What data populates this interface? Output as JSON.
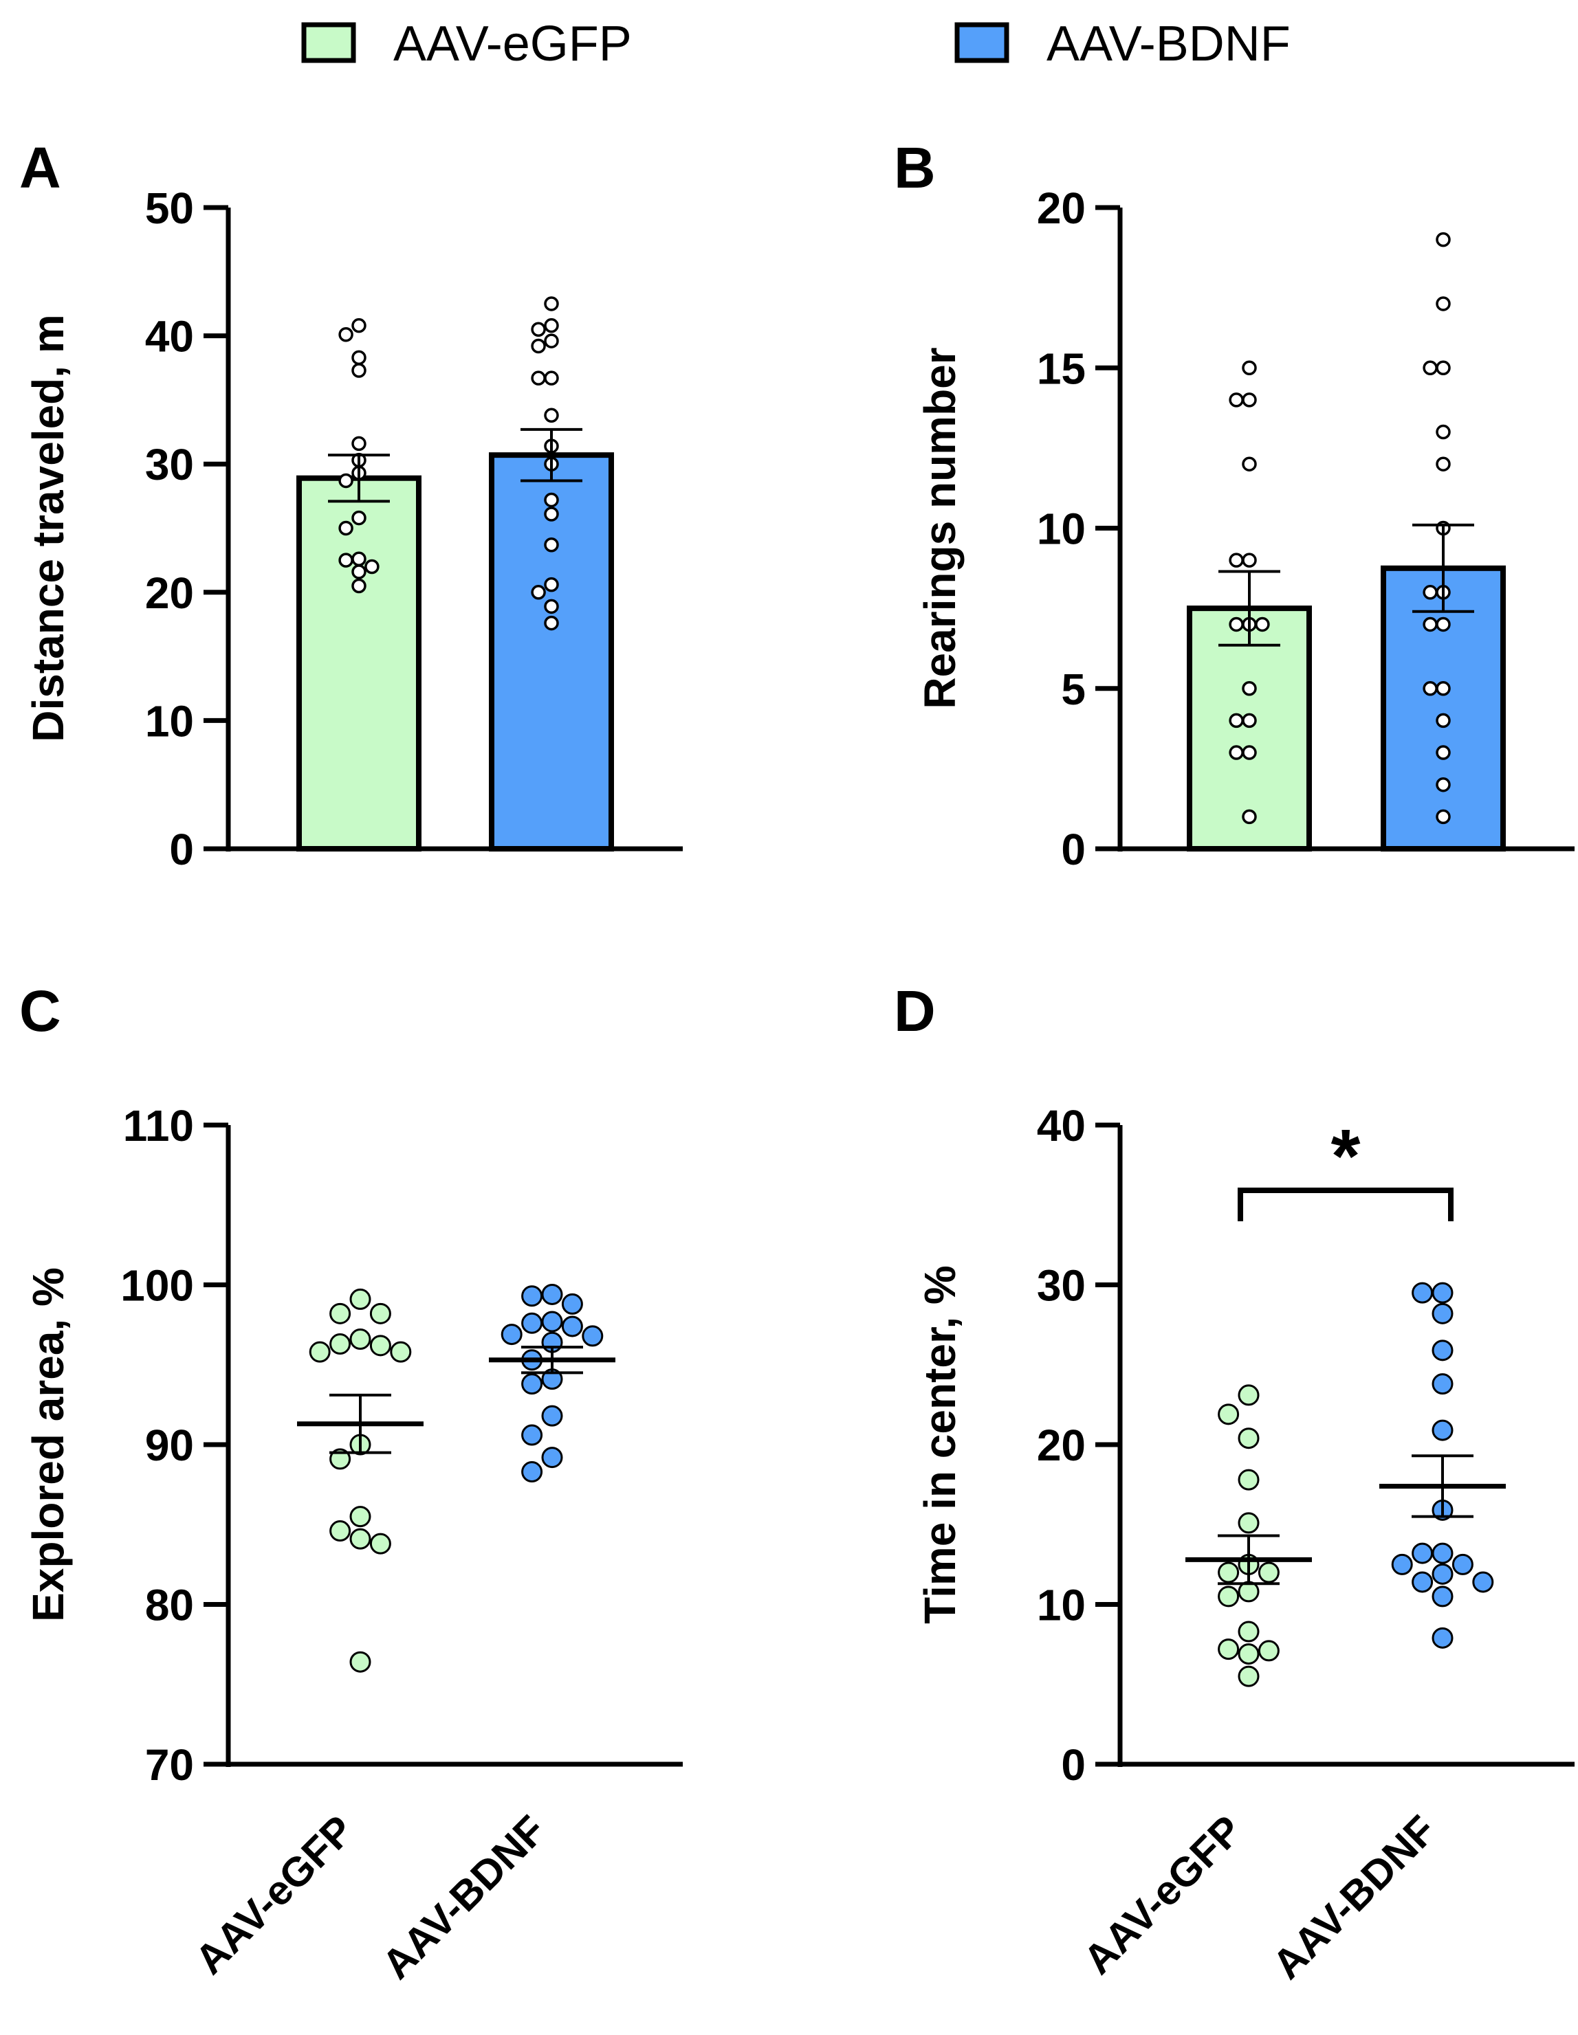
{
  "legend": [
    {
      "label": "AAV-eGFP",
      "color": "#c8fac8"
    },
    {
      "label": "AAV-BDNF",
      "color": "#55a0fa"
    }
  ],
  "chart_data": [
    {
      "panel": "A",
      "type": "bar",
      "ylabel": "Distance traveled, m",
      "ylim": [
        0,
        50
      ],
      "yticks": [
        0,
        10,
        20,
        30,
        40,
        50
      ],
      "categories": [
        "AAV-eGFP",
        "AAV-BDNF"
      ],
      "series": [
        {
          "name": "AAV-eGFP",
          "mean": 28.9,
          "sem": 1.8,
          "points": [
            40.8,
            40.1,
            38.3,
            37.3,
            31.6,
            30.3,
            29.3,
            28.7,
            25.8,
            25.0,
            22.6,
            22.5,
            22.0,
            21.6,
            20.5
          ]
        },
        {
          "name": "AAV-BDNF",
          "mean": 30.7,
          "sem": 2.0,
          "points": [
            42.5,
            40.8,
            40.5,
            39.6,
            39.2,
            36.7,
            36.7,
            33.8,
            31.4,
            30.0,
            27.2,
            26.1,
            23.7,
            20.6,
            20.0,
            18.9,
            17.6
          ]
        }
      ]
    },
    {
      "panel": "B",
      "type": "bar",
      "ylabel": "Rearings number",
      "ylim": [
        0,
        20
      ],
      "yticks": [
        0,
        5,
        10,
        15,
        20
      ],
      "categories": [
        "AAV-eGFP",
        "AAV-BDNF"
      ],
      "series": [
        {
          "name": "AAV-eGFP",
          "mean": 7.5,
          "sem": 1.15,
          "points": [
            15,
            14,
            14,
            12,
            9,
            9,
            7,
            7,
            7,
            5,
            4,
            4,
            3,
            3,
            1
          ]
        },
        {
          "name": "AAV-BDNF",
          "mean": 8.75,
          "sem": 1.35,
          "points": [
            19,
            17,
            15,
            15,
            13,
            12,
            10,
            8,
            8,
            7,
            7,
            5,
            5,
            4,
            3,
            2,
            1
          ]
        }
      ]
    },
    {
      "panel": "C",
      "type": "scatter",
      "ylabel": "Explored area, %",
      "ylim": [
        70,
        110
      ],
      "yticks": [
        70,
        80,
        90,
        100,
        110
      ],
      "categories": [
        "AAV-eGFP",
        "AAV-BDNF"
      ],
      "series": [
        {
          "name": "AAV-eGFP",
          "mean": 91.3,
          "sem": 1.8,
          "points": [
            99.1,
            98.2,
            98.2,
            96.6,
            96.3,
            96.2,
            95.8,
            95.8,
            90.0,
            89.1,
            85.5,
            84.6,
            84.1,
            83.8,
            76.4
          ]
        },
        {
          "name": "AAV-BDNF",
          "mean": 95.3,
          "sem": 0.8,
          "points": [
            99.4,
            99.3,
            98.8,
            97.7,
            97.6,
            97.4,
            96.9,
            96.8,
            96.4,
            95.3,
            94.1,
            93.8,
            91.8,
            90.6,
            89.2,
            88.3
          ]
        }
      ]
    },
    {
      "panel": "D",
      "type": "scatter",
      "ylabel": "Time in center, %",
      "ylim": [
        0,
        40
      ],
      "yticks": [
        0,
        10,
        20,
        30,
        40
      ],
      "categories": [
        "AAV-eGFP",
        "AAV-BDNF"
      ],
      "significance": "*",
      "series": [
        {
          "name": "AAV-eGFP",
          "mean": 12.8,
          "sem": 1.5,
          "points": [
            23.1,
            21.9,
            20.4,
            17.8,
            15.1,
            12.5,
            12.0,
            12.0,
            10.8,
            10.5,
            8.3,
            7.2,
            7.1,
            6.9,
            5.5
          ]
        },
        {
          "name": "AAV-BDNF",
          "mean": 17.4,
          "sem": 1.9,
          "points": [
            29.5,
            29.5,
            28.2,
            25.9,
            23.8,
            20.9,
            15.9,
            13.2,
            13.2,
            12.5,
            12.5,
            11.9,
            11.4,
            11.4,
            10.5,
            7.9
          ]
        }
      ]
    }
  ]
}
